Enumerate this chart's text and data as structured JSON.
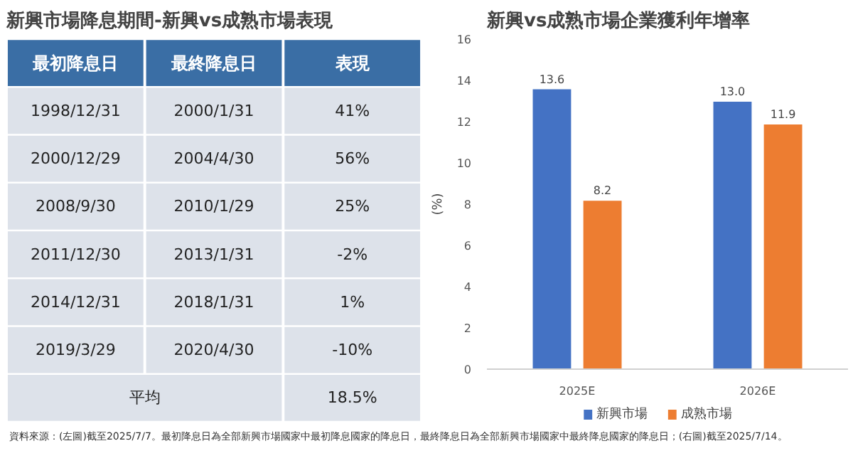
{
  "chart_data": [
    {
      "type": "other",
      "title": "新興市場降息期間-新興vs成熟市場表現",
      "categories": [
        "最初降息日",
        "最終降息日",
        "表現"
      ],
      "cell_labels": [
        [
          "1998/12/31",
          "2000/1/31",
          "41%"
        ],
        [
          "2000/12/29",
          "2004/4/30",
          "56%"
        ],
        [
          "2008/9/30",
          "2010/1/29",
          "25%"
        ],
        [
          "2011/12/30",
          "2013/1/31",
          "-2%"
        ],
        [
          "2014/12/31",
          "2018/1/31",
          "1%"
        ],
        [
          "2019/3/29",
          "2020/4/30",
          "-10%"
        ],
        [
          "平均",
          null,
          "18.5%"
        ]
      ],
      "annotations": [
        "資料來源：(左圖)截至2025/7/7。最初降息日為全部新興市場國家中最初降息國家的降息日，最終降息日為全部新興市場國家中最終降息國家的降息日；(右圖)截至2025/7/14。"
      ]
    },
    {
      "type": "bar",
      "title": "新興vs成熟市場企業獲利年增率",
      "ylabel": "(%)",
      "categories": [
        "2025E",
        "2026E"
      ],
      "series": [
        {
          "name": "新興市場",
          "color": "#4472c4",
          "values": [
            13.6,
            13.0
          ],
          "value_labels": [
            "13.6",
            "13.0"
          ]
        },
        {
          "name": "成熟市場",
          "color": "#ed7d31",
          "values": [
            8.2,
            11.9
          ],
          "value_labels": [
            "8.2",
            "11.9"
          ]
        }
      ],
      "ylim": [
        0,
        16
      ],
      "yticks": [
        0,
        2,
        4,
        6,
        8,
        10,
        12,
        14,
        16
      ],
      "grid": false,
      "legend": "bottom"
    }
  ]
}
